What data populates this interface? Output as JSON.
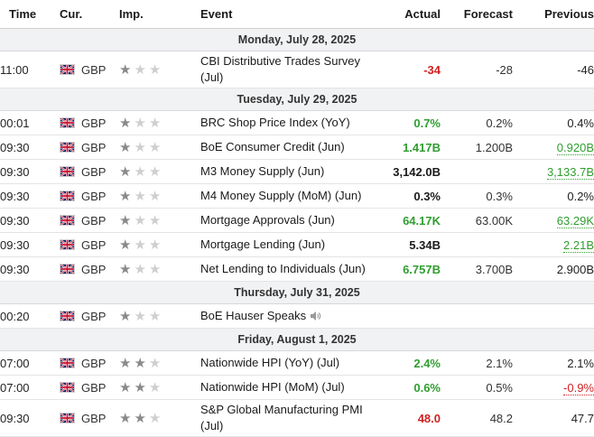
{
  "colors": {
    "positive": "#2f9e2f",
    "negative": "#d31f1f",
    "neutral": "#1a1a1a",
    "date_row_bg": "#f1f2f4"
  },
  "headers": {
    "time": "Time",
    "currency": "Cur.",
    "importance": "Imp.",
    "event": "Event",
    "actual": "Actual",
    "forecast": "Forecast",
    "previous": "Previous"
  },
  "days": [
    {
      "date": "Monday, July 28, 2025",
      "events": [
        {
          "time": "11:00",
          "currency": "GBP",
          "flag": "uk-flag-icon",
          "importance": 1,
          "event_line1": "CBI Distributive Trades Survey",
          "event_line2": "(Jul)",
          "actual": "-34",
          "actual_tone": "red",
          "forecast": "-28",
          "previous": "-46",
          "previous_tone": "plain"
        }
      ]
    },
    {
      "date": "Tuesday, July 29, 2025",
      "events": [
        {
          "time": "00:01",
          "currency": "GBP",
          "flag": "uk-flag-icon",
          "importance": 1,
          "event_line1": "BRC Shop Price Index (YoY)",
          "actual": "0.7%",
          "actual_tone": "green",
          "forecast": "0.2%",
          "previous": "0.4%",
          "previous_tone": "plain"
        },
        {
          "time": "09:30",
          "currency": "GBP",
          "flag": "uk-flag-icon",
          "importance": 1,
          "event_line1": "BoE Consumer Credit (Jun)",
          "actual": "1.417B",
          "actual_tone": "green",
          "forecast": "1.200B",
          "previous": "0.920B",
          "previous_tone": "green"
        },
        {
          "time": "09:30",
          "currency": "GBP",
          "flag": "uk-flag-icon",
          "importance": 1,
          "event_line1": "M3 Money Supply (Jun)",
          "actual": "3,142.0B",
          "actual_tone": "black",
          "forecast": "",
          "previous": "3,133.7B",
          "previous_tone": "green"
        },
        {
          "time": "09:30",
          "currency": "GBP",
          "flag": "uk-flag-icon",
          "importance": 1,
          "event_line1": "M4 Money Supply (MoM) (Jun)",
          "actual": "0.3%",
          "actual_tone": "black",
          "forecast": "0.3%",
          "previous": "0.2%",
          "previous_tone": "plain"
        },
        {
          "time": "09:30",
          "currency": "GBP",
          "flag": "uk-flag-icon",
          "importance": 1,
          "event_line1": "Mortgage Approvals (Jun)",
          "actual": "64.17K",
          "actual_tone": "green",
          "forecast": "63.00K",
          "previous": "63.29K",
          "previous_tone": "green"
        },
        {
          "time": "09:30",
          "currency": "GBP",
          "flag": "uk-flag-icon",
          "importance": 1,
          "event_line1": "Mortgage Lending (Jun)",
          "actual": "5.34B",
          "actual_tone": "black",
          "forecast": "",
          "previous": "2.21B",
          "previous_tone": "green"
        },
        {
          "time": "09:30",
          "currency": "GBP",
          "flag": "uk-flag-icon",
          "importance": 1,
          "event_line1": "Net Lending to Individuals (Jun)",
          "actual": "6.757B",
          "actual_tone": "green",
          "forecast": "3.700B",
          "previous": "2.900B",
          "previous_tone": "plain"
        }
      ]
    },
    {
      "date": "Thursday, July 31, 2025",
      "events": [
        {
          "time": "00:20",
          "currency": "GBP",
          "flag": "uk-flag-icon",
          "importance": 1,
          "event_line1": "BoE Hauser Speaks",
          "speech": true,
          "actual": "",
          "actual_tone": "black",
          "forecast": "",
          "previous": "",
          "previous_tone": "plain"
        }
      ]
    },
    {
      "date": "Friday, August 1, 2025",
      "events": [
        {
          "time": "07:00",
          "currency": "GBP",
          "flag": "uk-flag-icon",
          "importance": 2,
          "event_line1": "Nationwide HPI (YoY) (Jul)",
          "actual": "2.4%",
          "actual_tone": "green",
          "forecast": "2.1%",
          "previous": "2.1%",
          "previous_tone": "plain"
        },
        {
          "time": "07:00",
          "currency": "GBP",
          "flag": "uk-flag-icon",
          "importance": 2,
          "event_line1": "Nationwide HPI (MoM) (Jul)",
          "actual": "0.6%",
          "actual_tone": "green",
          "forecast": "0.5%",
          "previous": "-0.9%",
          "previous_tone": "red"
        },
        {
          "time": "09:30",
          "currency": "GBP",
          "flag": "uk-flag-icon",
          "importance": 2,
          "event_line1": "S&P Global Manufacturing PMI",
          "event_line2": "(Jul)",
          "actual": "48.0",
          "actual_tone": "red",
          "forecast": "48.2",
          "previous": "47.7",
          "previous_tone": "plain"
        }
      ]
    }
  ]
}
